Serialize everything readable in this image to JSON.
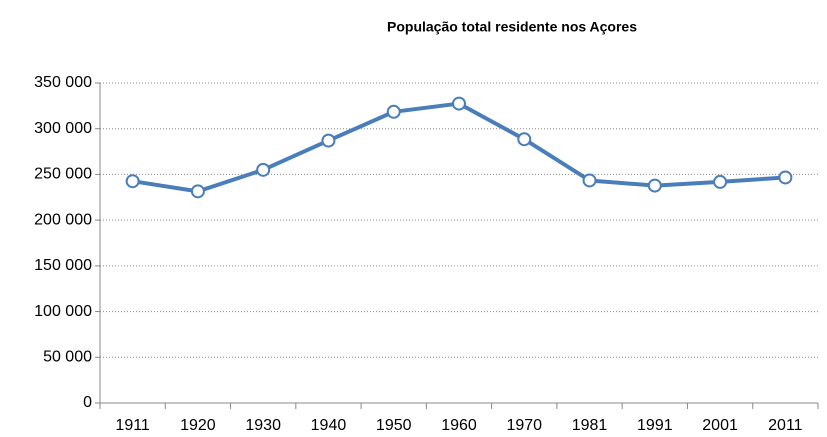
{
  "chart_data": {
    "type": "line",
    "title": "População total residente nos Açores",
    "categories": [
      "1911",
      "1920",
      "1930",
      "1940",
      "1950",
      "1960",
      "1970",
      "1981",
      "1991",
      "2001",
      "2011"
    ],
    "series": [
      {
        "name": "População",
        "color": "#4a7ebb",
        "values": [
          242600,
          231500,
          255000,
          287000,
          318500,
          327500,
          288500,
          243400,
          237800,
          241800,
          246700
        ]
      }
    ],
    "ylim": [
      0,
      350000
    ],
    "yticks": [
      0,
      {
        "value": 50000,
        "label": "50 000"
      },
      {
        "value": 100000,
        "label": "100 000"
      },
      {
        "value": 150000,
        "label": "150 000"
      },
      {
        "value": 200000,
        "label": "200 000"
      },
      {
        "value": 250000,
        "label": "250 000"
      },
      {
        "value": 300000,
        "label": "300 000"
      },
      {
        "value": 350000,
        "label": "350 000"
      }
    ],
    "grid": true
  }
}
